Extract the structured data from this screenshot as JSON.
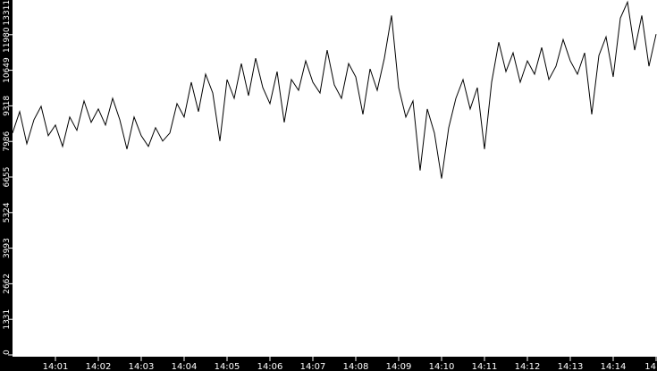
{
  "chart_data": {
    "type": "line",
    "title": "",
    "xlabel": "",
    "ylabel": "",
    "grid": false,
    "colors": {
      "background": "#000000",
      "plot_area": "#ffffff",
      "line": "#000000",
      "text": "#ffffff"
    },
    "x_range_minutes": [
      "14:00",
      "14:15"
    ],
    "ylim": [
      0,
      13311
    ],
    "y_ticks": [
      "0",
      "1331",
      "2662",
      "3993",
      "5324",
      "6655",
      "7986",
      "9318",
      "10649",
      "11980",
      "13311"
    ],
    "x_ticks": [
      "14:01",
      "14:02",
      "14:03",
      "14:04",
      "14:05",
      "14:06",
      "14:07",
      "14:08",
      "14:09",
      "14:10",
      "14:11",
      "14:12",
      "14:13",
      "14:14",
      "14"
    ],
    "sample_interval_seconds": 10,
    "series": [
      {
        "values": [
          8300,
          9100,
          7900,
          8800,
          9300,
          8200,
          8600,
          7800,
          8900,
          8400,
          9500,
          8700,
          9200,
          8600,
          9600,
          8800,
          7700,
          8900,
          8200,
          7800,
          8500,
          8000,
          8300,
          9400,
          8900,
          10200,
          9100,
          10500,
          9800,
          8000,
          10300,
          9600,
          10900,
          9700,
          11100,
          10000,
          9400,
          10600,
          8700,
          10300,
          9900,
          11000,
          10200,
          9800,
          11400,
          10100,
          9600,
          10900,
          10400,
          9000,
          10700,
          9900,
          11100,
          12700,
          10000,
          8900,
          9500,
          6900,
          9200,
          8300,
          6600,
          8500,
          9600,
          10300,
          9200,
          10000,
          7700,
          10200,
          11700,
          10600,
          11300,
          10200,
          11000,
          10500,
          11500,
          10300,
          10800,
          11800,
          11000,
          10500,
          11300,
          9000,
          11200,
          11900,
          10400,
          12600,
          13200,
          11400,
          12700,
          10800,
          12000
        ]
      }
    ]
  }
}
